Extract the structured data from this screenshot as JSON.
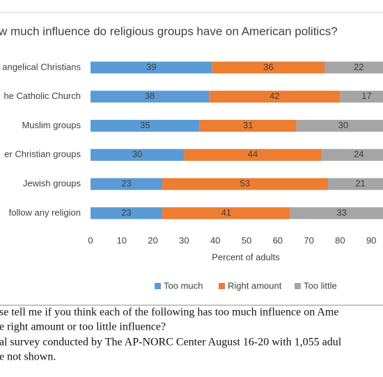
{
  "chart_data": {
    "type": "stacked-bar-horizontal",
    "title": "w much influence do religious groups have on American politics?",
    "categories": [
      "angelical Christians",
      "he Catholic Church",
      "Muslim groups",
      "er Christian groups",
      "Jewish groups",
      "follow any religion"
    ],
    "series": [
      {
        "name": "Too much",
        "color": "#5b9bd5",
        "values": [
          39,
          38,
          35,
          30,
          23,
          23
        ]
      },
      {
        "name": "Right amount",
        "color": "#ed7d31",
        "values": [
          36,
          42,
          31,
          44,
          53,
          41
        ]
      },
      {
        "name": "Too little",
        "color": "#a5a5a5",
        "values": [
          22,
          17,
          30,
          24,
          21,
          33
        ]
      }
    ],
    "xlim": [
      0,
      100
    ],
    "xticks": [
      0,
      10,
      20,
      30,
      40,
      50,
      60,
      70,
      80,
      90
    ],
    "xlabel": "Percent of adults",
    "grid": false,
    "legend": "bottom",
    "notes": [
      "se tell me if you think each of the following has too much influence on Ame",
      "e right amount or too little influence?",
      "al survey conducted by The AP-NORC Center August 16-20 with 1,055 adul",
      "e not shown."
    ]
  }
}
